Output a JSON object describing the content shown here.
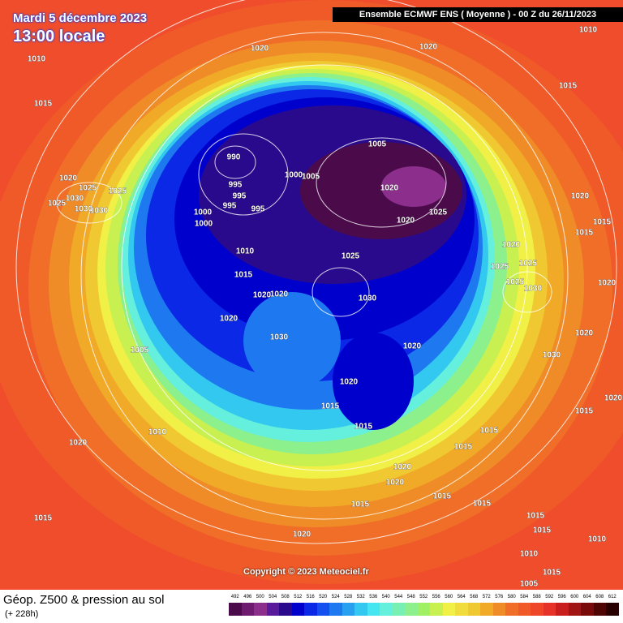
{
  "header": {
    "date": "Mardi 5 décembre 2023",
    "time": "13:00 locale",
    "model": "Ensemble ECMWF ENS  ( Moyenne )  -  00 Z du 26/11/2023"
  },
  "copyright": "Copyright © 2023 Meteociel.fr",
  "footer": {
    "title": "Géop. Z500 & pression au sol",
    "lead": "(+ 228h)"
  },
  "isobars": [
    "1010",
    "1020",
    "1020",
    "1010",
    "1015",
    "1015",
    "990",
    "1005",
    "1000",
    "1005",
    "1020",
    "995",
    "995",
    "995",
    "995",
    "1000",
    "1000",
    "1020",
    "1025",
    "1020",
    "1015",
    "1015",
    "1020",
    "1025",
    "1025",
    "1030",
    "1025",
    "1030",
    "1030",
    "1010",
    "1025",
    "1020",
    "1025",
    "1025",
    "1015",
    "1020",
    "1020",
    "1030",
    "1025",
    "1030",
    "1020",
    "1020",
    "1030",
    "1020",
    "1020",
    "1005",
    "1030",
    "1020",
    "1015",
    "1015",
    "1020",
    "1015",
    "1010",
    "1020",
    "1015",
    "1015",
    "1020",
    "1020",
    "1015",
    "1015",
    "1015",
    "1015",
    "1015",
    "1020",
    "1015",
    "1010",
    "1010",
    "1015",
    "1005"
  ],
  "legend": {
    "levels": [
      492,
      496,
      500,
      504,
      508,
      512,
      516,
      520,
      524,
      528,
      532,
      536,
      540,
      544,
      548,
      552,
      556,
      560,
      564,
      568,
      572,
      576,
      580,
      584,
      588,
      592,
      596,
      600,
      604,
      608,
      612
    ],
    "colors": [
      "#4b0b4b",
      "#6e1a6e",
      "#8c2e8c",
      "#5a1a9c",
      "#2a0a8c",
      "#0000cd",
      "#0a28e6",
      "#1450f0",
      "#1e78f0",
      "#28a0f0",
      "#32c8f0",
      "#46e6f0",
      "#64f0dc",
      "#78f0b4",
      "#8cf08c",
      "#a0f064",
      "#c8f050",
      "#f0f046",
      "#f0dc3c",
      "#f0c832",
      "#f0aa28",
      "#f08c28",
      "#f06e28",
      "#f05a28",
      "#f04628",
      "#e63228",
      "#c81e1e",
      "#a01414",
      "#780a0a",
      "#500505",
      "#280000"
    ]
  }
}
